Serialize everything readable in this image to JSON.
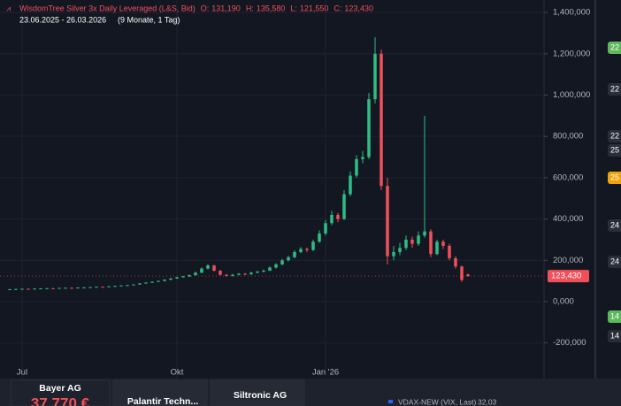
{
  "chart_data": {
    "type": "candlestick",
    "title": "WisdomTree Silver 3x Daily Leveraged (L&S, Bid)",
    "info": [
      {
        "key": "O:",
        "value": 131190,
        "label": "131,190"
      },
      {
        "key": "H:",
        "value": 135580,
        "label": "135,580"
      },
      {
        "key": "L:",
        "value": 121550,
        "label": "121,550"
      },
      {
        "key": "C:",
        "value": 123430,
        "label": "123,430"
      }
    ],
    "range_label": "23.06.2025 - 26.03.2026",
    "range_note": "(9 Monate, 1 Tag)",
    "last_price": {
      "value": 123430,
      "label": "123,430"
    },
    "up_color": "#2ebd85",
    "down_color": "#f0505a",
    "grid": true,
    "ylim": [
      -372600,
      1460300
    ],
    "yticks": [
      {
        "value": -200000,
        "label": "-200,000"
      },
      {
        "value": 0,
        "label": "0,000"
      },
      {
        "value": 200000,
        "label": "200,000"
      },
      {
        "value": 400000,
        "label": "400,000"
      },
      {
        "value": 600000,
        "label": "600,000"
      },
      {
        "value": 800000,
        "label": "800,000"
      },
      {
        "value": 1000000,
        "label": "1,000,000"
      },
      {
        "value": 1200000,
        "label": "1,200,000"
      },
      {
        "value": 1400000,
        "label": "1,400,000"
      }
    ],
    "categories": [
      null,
      null,
      "Jul",
      null,
      null,
      null,
      null,
      null,
      null,
      null,
      null,
      null,
      null,
      null,
      null,
      null,
      null,
      null,
      null,
      null,
      null,
      null,
      null,
      null,
      null,
      null,
      null,
      "Okt",
      null,
      null,
      null,
      null,
      null,
      null,
      null,
      null,
      null,
      null,
      null,
      null,
      null,
      null,
      null,
      null,
      null,
      null,
      null,
      null,
      null,
      null,
      null,
      "Jan '26",
      null,
      null,
      null,
      null,
      null,
      null,
      null,
      null,
      null,
      null,
      null,
      null,
      null,
      null,
      null,
      null,
      null,
      null,
      null,
      null,
      null,
      null,
      null
    ],
    "open": [
      59000,
      60000,
      61000,
      62000,
      61000,
      63000,
      64000,
      65000,
      64000,
      66000,
      67000,
      66000,
      68000,
      69000,
      70000,
      72000,
      71000,
      74000,
      76000,
      78000,
      80000,
      83000,
      88000,
      92000,
      96000,
      100000,
      106000,
      112000,
      118000,
      122000,
      128000,
      140000,
      160000,
      175000,
      150000,
      130000,
      125000,
      130000,
      135000,
      132000,
      140000,
      145000,
      150000,
      165000,
      180000,
      200000,
      215000,
      240000,
      255000,
      250000,
      290000,
      330000,
      380000,
      420000,
      400000,
      520000,
      610000,
      690000,
      700000,
      980000,
      1200000,
      560000,
      220000,
      240000,
      260000,
      300000,
      280000,
      320000,
      340000,
      230000,
      290000,
      270000,
      210000,
      170000,
      131190
    ],
    "high": [
      61000,
      62000,
      63000,
      63000,
      64000,
      65000,
      66000,
      66000,
      67000,
      68000,
      68000,
      69000,
      70000,
      71000,
      73000,
      73000,
      75000,
      77000,
      79000,
      81000,
      84000,
      90000,
      94000,
      98000,
      102000,
      108000,
      114000,
      120000,
      125000,
      131000,
      145000,
      166000,
      182000,
      178000,
      152000,
      133000,
      134000,
      138000,
      138000,
      144000,
      149000,
      155000,
      170000,
      186000,
      207000,
      222000,
      248000,
      264000,
      262000,
      300000,
      345000,
      395000,
      440000,
      430000,
      540000,
      630000,
      710000,
      730000,
      1010000,
      1280000,
      1220000,
      600000,
      270000,
      285000,
      320000,
      315000,
      340000,
      900000,
      350000,
      300000,
      300000,
      280000,
      220000,
      175000,
      135580
    ],
    "low": [
      58000,
      59000,
      60000,
      60000,
      60000,
      62000,
      63000,
      63000,
      63000,
      65000,
      65000,
      65000,
      67000,
      68000,
      69000,
      70000,
      70000,
      73000,
      75000,
      77000,
      79000,
      82000,
      87000,
      90000,
      95000,
      98000,
      104000,
      110000,
      116000,
      120000,
      126000,
      138000,
      156000,
      146000,
      126000,
      121000,
      122000,
      127000,
      128000,
      130000,
      137000,
      142000,
      148000,
      160000,
      176000,
      195000,
      210000,
      234000,
      240000,
      245000,
      285000,
      320000,
      370000,
      385000,
      395000,
      510000,
      600000,
      670000,
      690000,
      960000,
      540000,
      180000,
      200000,
      225000,
      250000,
      260000,
      270000,
      310000,
      215000,
      225000,
      255000,
      200000,
      160000,
      95000,
      121550
    ],
    "close": [
      60000,
      61000,
      62000,
      61000,
      63000,
      64000,
      65000,
      64000,
      66000,
      67000,
      66000,
      68000,
      69000,
      70000,
      72000,
      71000,
      74000,
      76000,
      78000,
      80000,
      83000,
      88000,
      92000,
      96000,
      100000,
      106000,
      112000,
      118000,
      122000,
      128000,
      140000,
      160000,
      175000,
      150000,
      130000,
      125000,
      130000,
      135000,
      132000,
      140000,
      145000,
      150000,
      165000,
      180000,
      200000,
      215000,
      240000,
      255000,
      250000,
      290000,
      330000,
      380000,
      420000,
      400000,
      520000,
      610000,
      690000,
      700000,
      980000,
      1200000,
      560000,
      220000,
      240000,
      260000,
      300000,
      280000,
      320000,
      340000,
      230000,
      290000,
      270000,
      210000,
      170000,
      105000,
      123430
    ]
  },
  "side_badges": [
    {
      "text": "22",
      "color": "#5cb85c"
    },
    {
      "text": "22",
      "color": "#2a2e39"
    },
    {
      "text": "22",
      "color": "#2a2e39"
    },
    {
      "text": "25",
      "color": "#2a2e39"
    },
    {
      "text": "25",
      "color": "#f0a30a"
    },
    {
      "text": "24",
      "color": "#2a2e39"
    },
    {
      "text": "24",
      "color": "#2a2e39"
    },
    {
      "text": "14",
      "color": "#5cb85c"
    },
    {
      "text": "14",
      "color": "#2a2e39"
    }
  ],
  "tabs": [
    {
      "name": "Bayer AG",
      "price": "37,770 €"
    },
    {
      "name": "Palantir Techn..."
    },
    {
      "name": "Siltronic AG"
    }
  ],
  "indicator": {
    "name": "VDAX-NEW (VIX, Last)",
    "value": "32,03"
  }
}
